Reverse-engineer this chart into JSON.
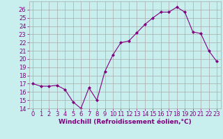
{
  "x": [
    0,
    1,
    2,
    3,
    4,
    5,
    6,
    7,
    8,
    9,
    10,
    11,
    12,
    13,
    14,
    15,
    16,
    17,
    18,
    19,
    20,
    21,
    22,
    23
  ],
  "y": [
    17.0,
    16.7,
    16.7,
    16.8,
    16.3,
    14.8,
    14.0,
    16.5,
    15.0,
    18.5,
    20.5,
    22.0,
    22.2,
    23.2,
    24.2,
    25.0,
    25.7,
    25.7,
    26.3,
    25.7,
    23.3,
    23.1,
    21.0,
    19.7
  ],
  "line_color": "#800080",
  "marker": "D",
  "bg_color": "#c8eeee",
  "grid_color": "#aaaaaa",
  "axis_color": "#800080",
  "xlabel": "Windchill (Refroidissement éolien,°C)",
  "xlabel_fontsize": 6.5,
  "tick_fontsize": 6.0,
  "ylim": [
    14,
    27
  ],
  "xlim": [
    -0.5,
    23.5
  ],
  "yticks": [
    14,
    15,
    16,
    17,
    18,
    19,
    20,
    21,
    22,
    23,
    24,
    25,
    26
  ],
  "xticks": [
    0,
    1,
    2,
    3,
    4,
    5,
    6,
    7,
    8,
    9,
    10,
    11,
    12,
    13,
    14,
    15,
    16,
    17,
    18,
    19,
    20,
    21,
    22,
    23
  ]
}
